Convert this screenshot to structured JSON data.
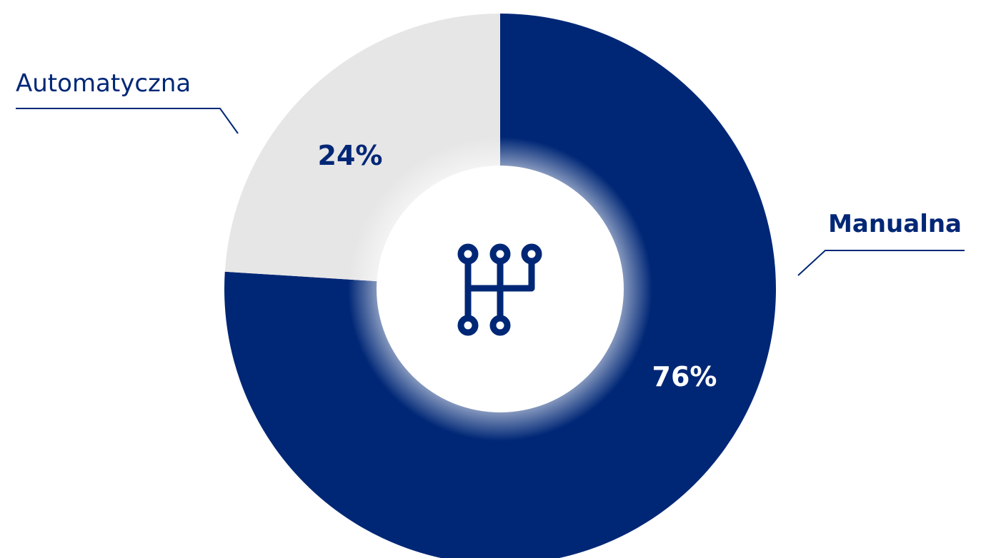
{
  "chart_data": {
    "type": "pie",
    "style": "donut",
    "center_icon": "gear-shift-icon",
    "slices": [
      {
        "label": "Manualna",
        "value": 76,
        "value_label": "76%",
        "color": "#002776"
      },
      {
        "label": "Automatyczna",
        "value": 24,
        "value_label": "24%",
        "color": "#e6e6e6"
      }
    ],
    "label_colors": {
      "category_line": "#002776",
      "value_on_light": "#002776",
      "value_on_dark": "#ffffff"
    },
    "start_angle_deg": 0,
    "direction": "clockwise"
  }
}
